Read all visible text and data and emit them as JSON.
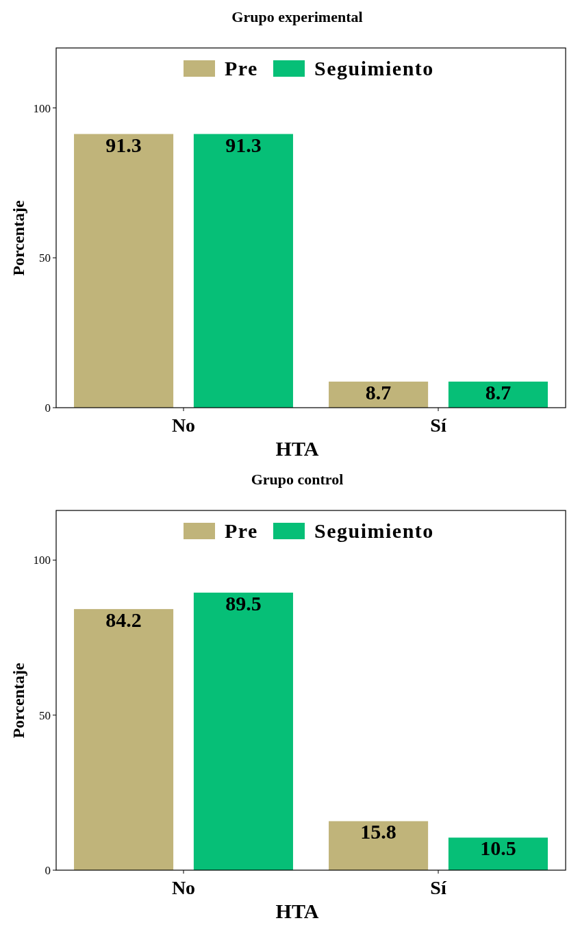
{
  "chart_data": [
    {
      "type": "bar",
      "title": "Grupo experimental",
      "xlabel": "HTA",
      "ylabel": "Porcentaje",
      "categories": [
        "No",
        "Sí"
      ],
      "series": [
        {
          "name": "Pre",
          "color": "#c0b47a",
          "values": [
            91.3,
            8.7
          ]
        },
        {
          "name": "Seguimiento",
          "color": "#06bf77",
          "values": [
            91.3,
            8.7
          ]
        }
      ],
      "ylim": [
        0,
        120
      ],
      "yticks": [
        0,
        50,
        100
      ],
      "data_labels": true,
      "legend": "top",
      "grid": false
    },
    {
      "type": "bar",
      "title": "Grupo control",
      "xlabel": "HTA",
      "ylabel": "Porcentaje",
      "categories": [
        "No",
        "Sí"
      ],
      "series": [
        {
          "name": "Pre",
          "color": "#c0b47a",
          "values": [
            84.2,
            15.8
          ]
        },
        {
          "name": "Seguimiento",
          "color": "#06bf77",
          "values": [
            89.5,
            10.5
          ]
        }
      ],
      "ylim": [
        0,
        116
      ],
      "yticks": [
        0,
        50,
        100
      ],
      "data_labels": true,
      "legend": "top",
      "grid": false
    }
  ]
}
